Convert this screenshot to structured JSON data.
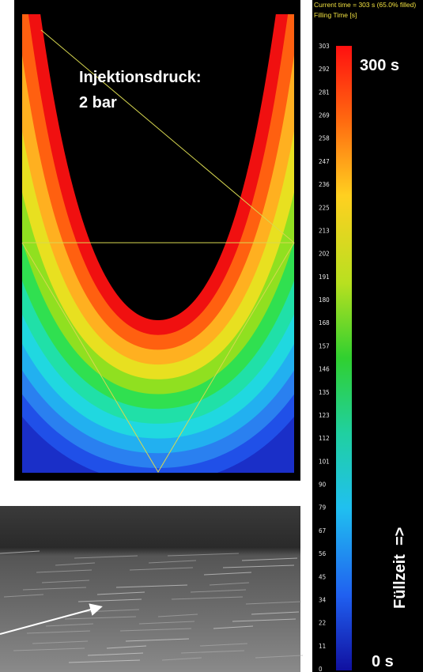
{
  "simulation": {
    "label_line1": "Injektionsdruck:",
    "label_line2": "2 bar"
  },
  "colorbar": {
    "header_line1": "Current time = 303 s (65.0% filled)",
    "header_line2": "Filling Time [s]",
    "ticks": [
      303,
      292,
      281,
      269,
      258,
      247,
      236,
      225,
      213,
      202,
      191,
      180,
      168,
      157,
      146,
      135,
      123,
      112,
      101,
      90,
      79,
      67,
      56,
      45,
      34,
      22,
      11,
      0
    ],
    "max_label": "300 s",
    "min_label": "0 s",
    "axis_label": "Füllzeit  =>"
  }
}
